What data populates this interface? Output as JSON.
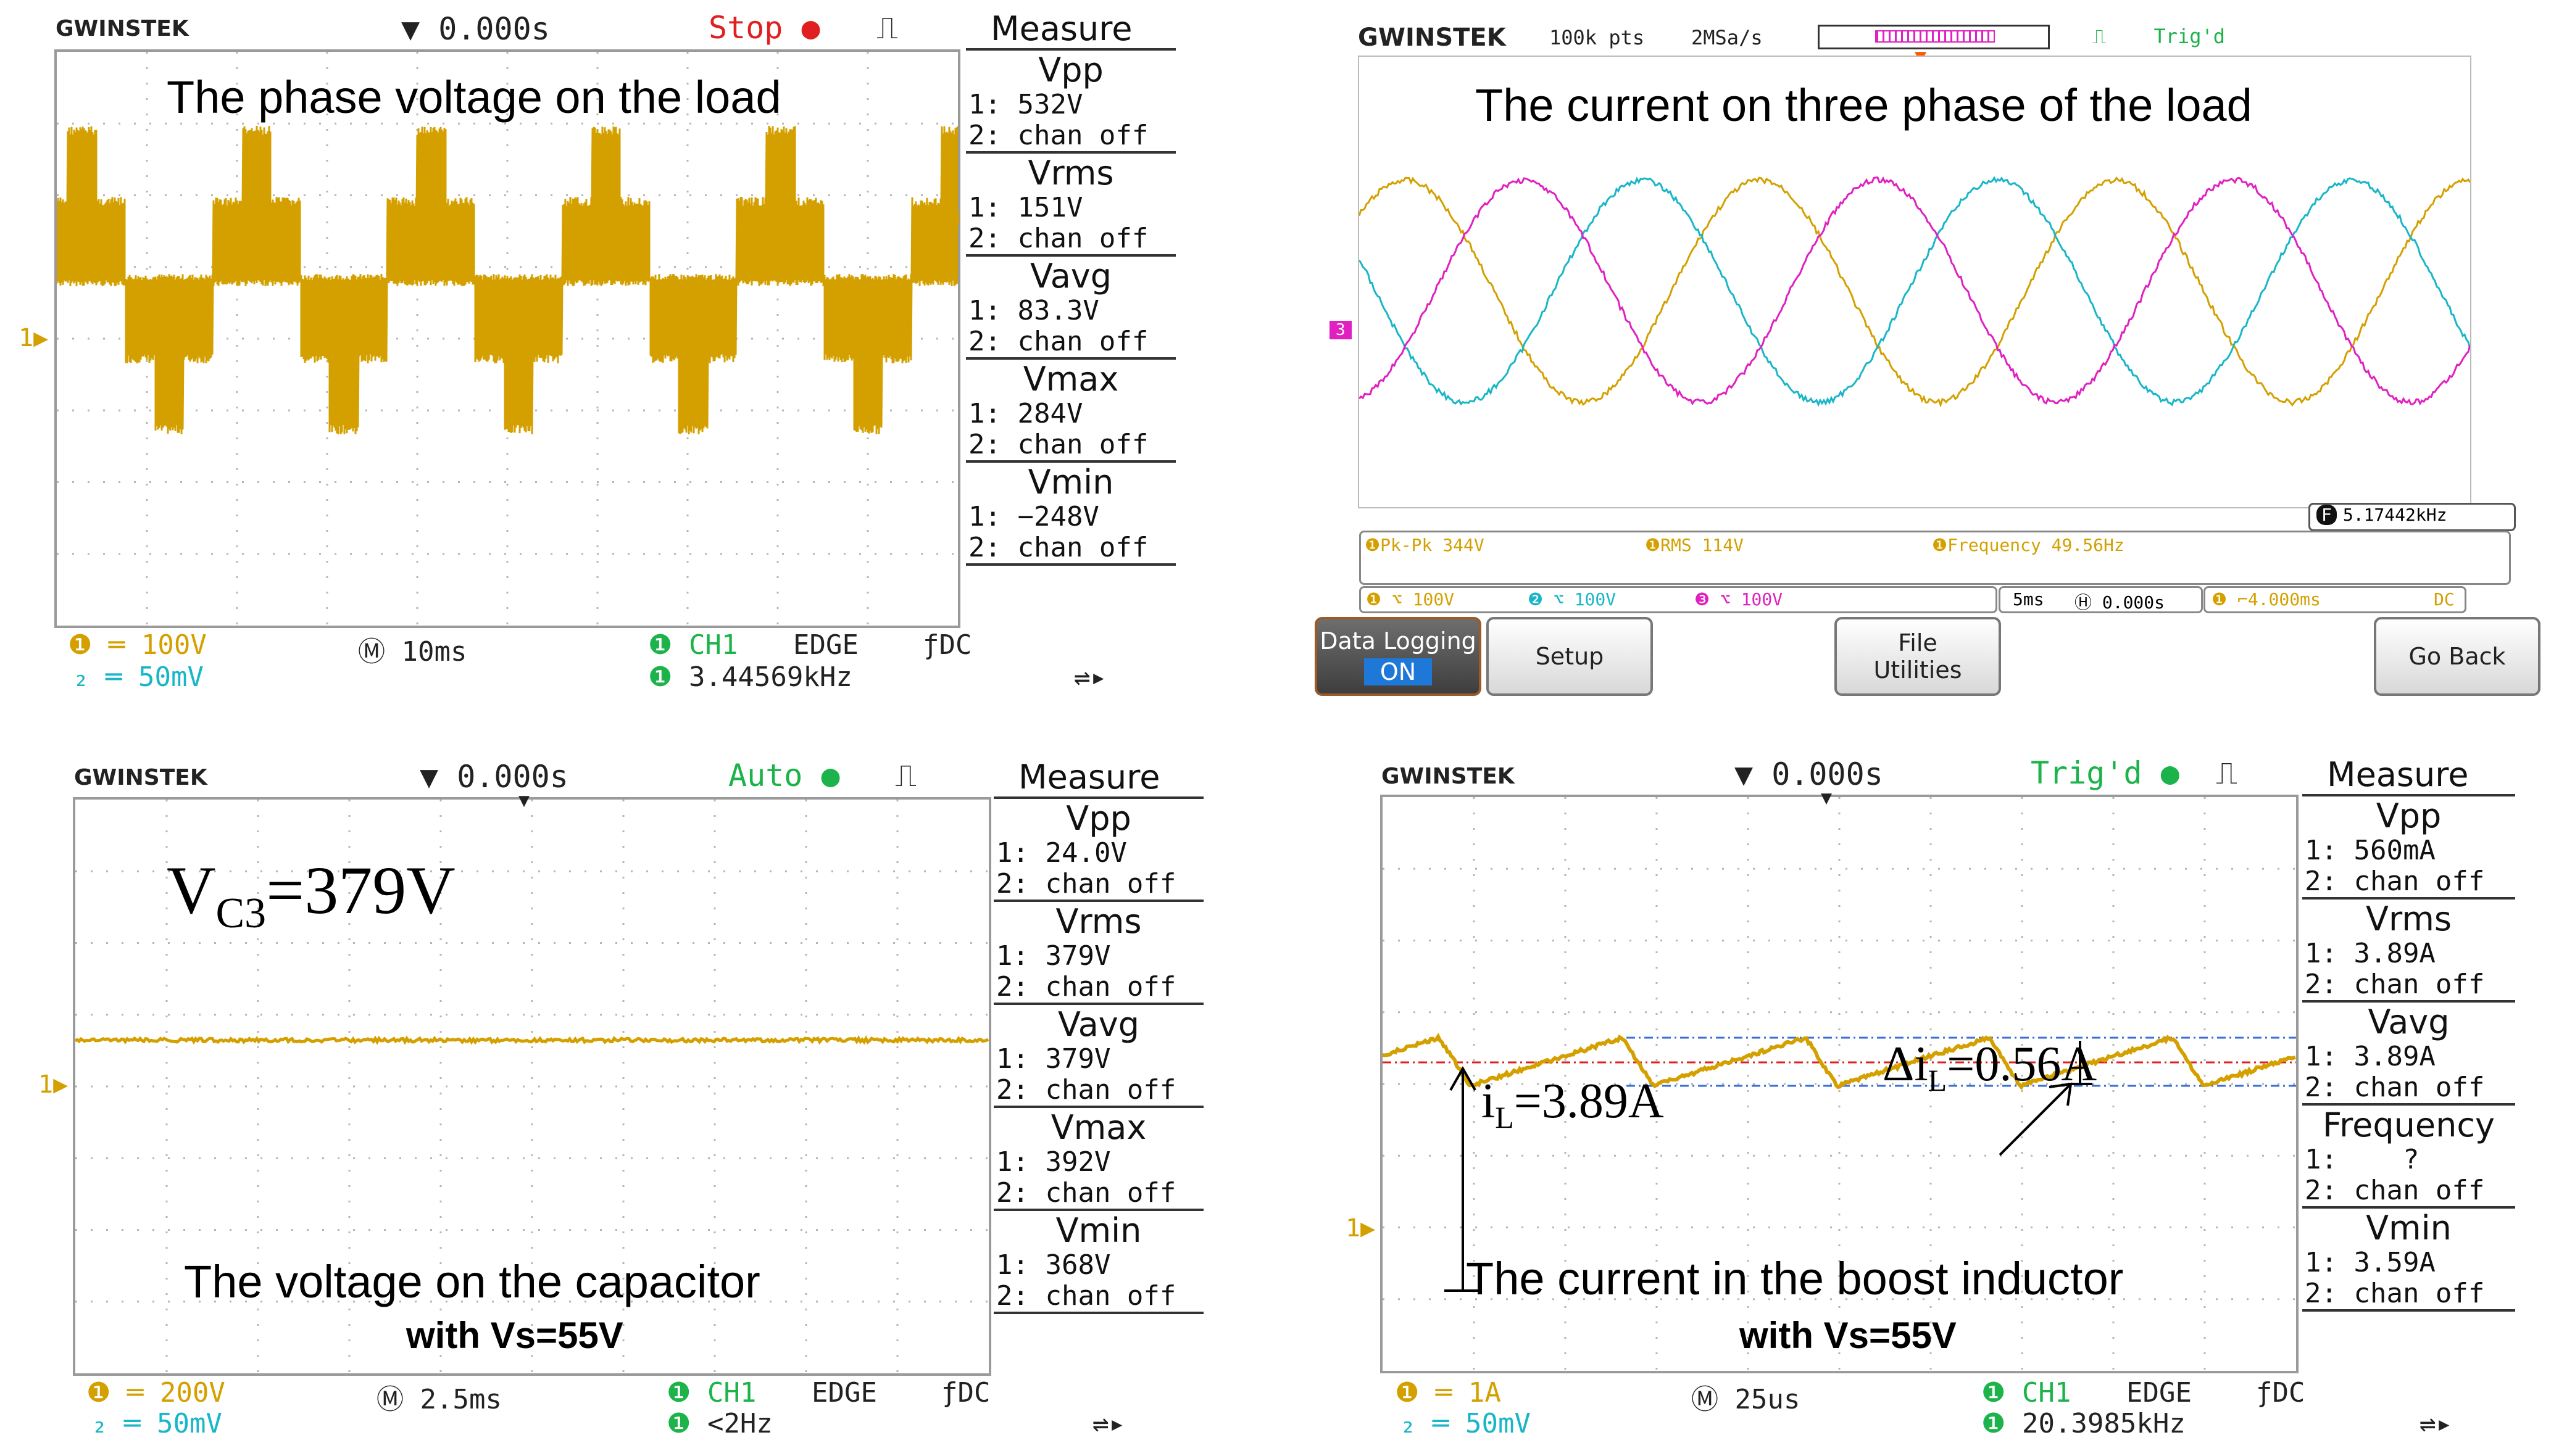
{
  "panels": {
    "p1": {
      "brand": "GWINSTEK",
      "time_offset": "0.000s",
      "status": "Stop",
      "caption": "The phase voltage on the load",
      "ch_marker": "1",
      "measure": {
        "title": "Measure",
        "items": [
          {
            "name": "Vpp",
            "ch1": "1: 532V",
            "ch2": "2: chan off"
          },
          {
            "name": "Vrms",
            "ch1": "1: 151V",
            "ch2": "2: chan off"
          },
          {
            "name": "Vavg",
            "ch1": "1: 83.3V",
            "ch2": "2: chan off"
          },
          {
            "name": "Vmax",
            "ch1": "1: 284V",
            "ch2": "2: chan off"
          },
          {
            "name": "Vmin",
            "ch1": "1: −248V",
            "ch2": "2: chan off"
          }
        ]
      },
      "footer": {
        "ch1_scale": "100V",
        "ch2_scale": "50mV",
        "timebase": "10ms",
        "trig_src": "CH1",
        "trig_type": "EDGE",
        "coupling": "DC",
        "freq": "3.44569kHz"
      }
    },
    "p2": {
      "brand": "GWINSTEK",
      "points": "100k pts",
      "rate": "2MSa/s",
      "trig_state": "Trig'd",
      "caption": "The current on three phase of the load",
      "ch_marker": "3",
      "freq_box": "5.17442kHz",
      "meas_row": {
        "pkpk": "Pk-Pk 344V",
        "rms": "RMS 114V",
        "freq": "Frequency 49.56Hz"
      },
      "ch_row": {
        "c1": "100V",
        "c2": "100V",
        "c3": "100V",
        "timebase": "5ms",
        "delay": "0.000s",
        "trig": "4.000ms",
        "coupling": "DC"
      },
      "buttons": {
        "data_logging": "Data Logging",
        "on": "ON",
        "setup": "Setup",
        "file1": "File",
        "file2": "Utilities",
        "go_back": "Go Back"
      }
    },
    "p3": {
      "brand": "GWINSTEK",
      "time_offset": "0.000s",
      "status": "Auto",
      "label_main": "V",
      "label_sub": "C3",
      "label_val": "=379V",
      "caption1": "The voltage on the capacitor",
      "caption2": "with Vs=55V",
      "ch_marker": "1",
      "measure": {
        "title": "Measure",
        "items": [
          {
            "name": "Vpp",
            "ch1": "1: 24.0V",
            "ch2": "2: chan off"
          },
          {
            "name": "Vrms",
            "ch1": "1: 379V",
            "ch2": "2: chan off"
          },
          {
            "name": "Vavg",
            "ch1": "1: 379V",
            "ch2": "2: chan off"
          },
          {
            "name": "Vmax",
            "ch1": "1: 392V",
            "ch2": "2: chan off"
          },
          {
            "name": "Vmin",
            "ch1": "1: 368V",
            "ch2": "2: chan off"
          }
        ]
      },
      "footer": {
        "ch1_scale": "200V",
        "ch2_scale": "50mV",
        "timebase": "2.5ms",
        "trig_src": "CH1",
        "trig_type": "EDGE",
        "coupling": "DC",
        "freq": "<2Hz"
      }
    },
    "p4": {
      "brand": "GWINSTEK",
      "time_offset": "0.000s",
      "status": "Trig'd",
      "il_main": "i",
      "il_sub": "L",
      "il_val": "=3.89A",
      "dil_main": "Δi",
      "dil_sub": "L",
      "dil_val": "=0.56A",
      "caption1": "The current in the boost inductor",
      "caption2": "with Vs=55V",
      "ch_marker": "1",
      "measure": {
        "title": "Measure",
        "items": [
          {
            "name": "Vpp",
            "ch1": "1: 560mA",
            "ch2": "2: chan off"
          },
          {
            "name": "Vrms",
            "ch1": "1: 3.89A",
            "ch2": "2: chan off"
          },
          {
            "name": "Vavg",
            "ch1": "1: 3.89A",
            "ch2": "2: chan off"
          },
          {
            "name": "Frequency",
            "ch1": "1:    ?",
            "ch2": "2: chan off"
          },
          {
            "name": "Vmin",
            "ch1": "1: 3.59A",
            "ch2": "2: chan off"
          }
        ]
      },
      "footer": {
        "ch1_scale": "1A",
        "ch2_scale": "50mV",
        "timebase": "25us",
        "trig_src": "CH1",
        "trig_type": "EDGE",
        "coupling": "DC",
        "freq": "20.3985kHz"
      }
    }
  },
  "colors": {
    "ch1": "#d4a000",
    "ch2": "#19b6c8",
    "ch3": "#e020c0",
    "trig_green": "#1bb34a",
    "stop_red": "#e02020"
  }
}
